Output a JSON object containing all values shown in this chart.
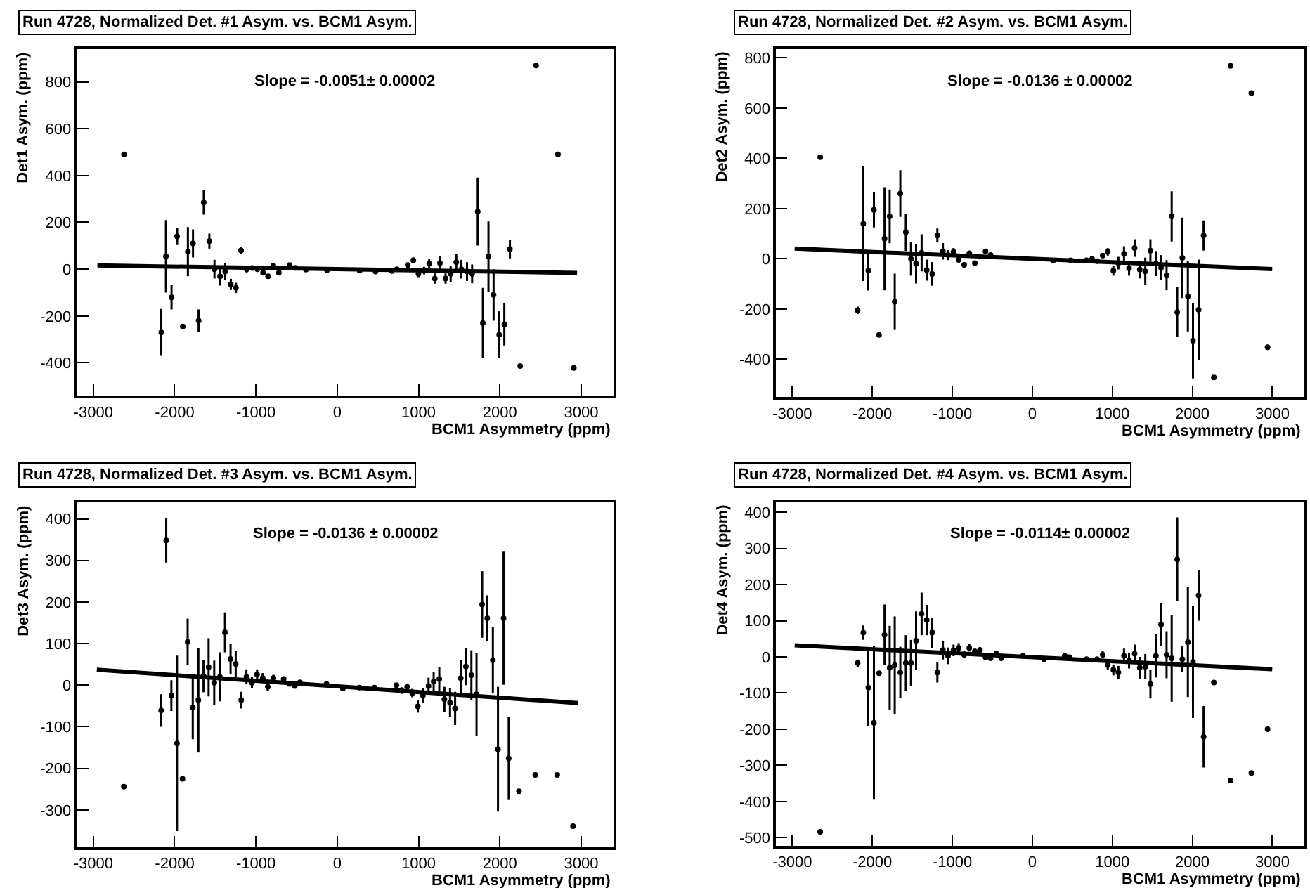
{
  "chart_data": [
    {
      "type": "scatter",
      "title": "Run 4728, Normalized Det. #1 Asym. vs. BCM1 Asym.",
      "xlabel": "BCM1 Asymmetry (ppm)",
      "ylabel": "Det1 Asym. (ppm)",
      "annotations": [
        "Slope = -0.0051± 0.00002"
      ],
      "xlim": [
        -3200,
        3400
      ],
      "ylim": [
        -540,
        940
      ],
      "xticks": [
        -3000,
        -2000,
        -1000,
        0,
        1000,
        2000,
        3000
      ],
      "yticks": [
        -400,
        -200,
        0,
        200,
        400,
        600,
        800
      ],
      "marker": "circle",
      "series": [
        {
          "type": "scatter",
          "color": "#000000",
          "x": [
            -2623,
            -2164,
            -2107,
            -2038,
            -1969,
            -1900,
            -1837,
            -1774,
            -1705,
            -1642,
            -1573,
            -1510,
            -1441,
            -1378,
            -1309,
            -1246,
            -1183,
            -1114,
            -1045,
            -982,
            -913,
            -850,
            -786,
            -718,
            -585,
            -517,
            -385,
            -126,
            276,
            471,
            672,
            735,
            867,
            936,
            999,
            1068,
            1131,
            1200,
            1263,
            1332,
            1395,
            1464,
            1527,
            1596,
            1659,
            1728,
            1791,
            1860,
            1923,
            1992,
            2055,
            2124,
            2250,
            2445,
            2715,
            2910
          ],
          "values": [
            490,
            -270,
            55,
            -120,
            140,
            -245,
            75,
            110,
            -220,
            285,
            120,
            0,
            -30,
            -10,
            -65,
            -80,
            80,
            0,
            5,
            0,
            -15,
            -30,
            15,
            -15,
            18,
            6,
            -2,
            -4,
            -6,
            -10,
            -8,
            0,
            18,
            38,
            -20,
            -6,
            24,
            -40,
            26,
            -40,
            -20,
            30,
            0,
            -10,
            -20,
            246,
            -230,
            54,
            -110,
            -280,
            -236,
            86,
            -414,
            870,
            490,
            -422
          ],
          "errors": [
            null,
            100,
            155,
            52,
            37,
            null,
            105,
            60,
            48,
            52,
            32,
            40,
            40,
            35,
            24,
            22,
            14,
            14,
            10,
            10,
            8,
            8,
            6,
            8,
            5,
            4,
            3,
            3,
            3,
            3,
            4,
            4,
            10,
            12,
            14,
            16,
            20,
            22,
            28,
            22,
            35,
            35,
            40,
            40,
            40,
            145,
            150,
            150,
            110,
            100,
            90,
            40,
            null,
            null,
            null,
            null
          ]
        },
        {
          "type": "line",
          "marker": "none",
          "color": "#000000",
          "x": [
            -2950,
            2950
          ],
          "values": [
            16,
            -16
          ]
        }
      ]
    },
    {
      "type": "scatter",
      "title": "Run 4728, Normalized Det. #2 Asym. vs. BCM1 Asym.",
      "xlabel": "BCM1 Asymmetry (ppm)",
      "ylabel": "Det2 Asym. (ppm)",
      "annotations": [
        "Slope = -0.0136 ± 0.00002"
      ],
      "xlim": [
        -3200,
        3400
      ],
      "ylim": [
        -550,
        835
      ],
      "xticks": [
        -3000,
        -2000,
        -1000,
        0,
        1000,
        2000,
        3000
      ],
      "yticks": [
        -400,
        -200,
        0,
        200,
        400,
        600,
        800
      ],
      "marker": "circle",
      "series": [
        {
          "type": "scatter",
          "color": "#000000",
          "x": [
            -2650,
            -2182,
            -2112,
            -2049,
            -1979,
            -1915,
            -1846,
            -1782,
            -1719,
            -1649,
            -1580,
            -1516,
            -1452,
            -1383,
            -1319,
            -1250,
            -1186,
            -1117,
            -1053,
            -984,
            -920,
            -851,
            -787,
            -718,
            -584,
            -521,
            260,
            480,
            677,
            747,
            810,
            880,
            943,
            1013,
            1076,
            1146,
            1209,
            1279,
            1343,
            1412,
            1476,
            1545,
            1609,
            1678,
            1742,
            1811,
            1875,
            1944,
            2008,
            2078,
            2141,
            2269,
            2477,
            2737,
            2940
          ],
          "values": [
            405,
            -205,
            140,
            -47,
            195,
            -303,
            80,
            169,
            -171,
            260,
            106,
            0,
            -19,
            24,
            -45,
            -60,
            93,
            30,
            15,
            28,
            -4,
            -24,
            22,
            -17,
            30,
            15,
            -7,
            -6,
            -6,
            0,
            -9,
            13,
            28,
            -47,
            -17,
            20,
            -37,
            43,
            -43,
            -50,
            33,
            -19,
            -35,
            -65,
            169,
            -212,
            4,
            -149,
            -326,
            -203,
            93,
            -472,
            768,
            660,
            -352
          ],
          "errors": [
            null,
            15,
            228,
            79,
            70,
            null,
            205,
            107,
            112,
            93,
            74,
            67,
            79,
            74,
            42,
            47,
            28,
            33,
            20,
            15,
            12,
            10,
            10,
            8,
            6,
            4,
            3,
            3,
            3,
            3,
            5,
            10,
            15,
            20,
            25,
            30,
            30,
            35,
            35,
            55,
            45,
            50,
            50,
            60,
            100,
            100,
            160,
            140,
            150,
            200,
            60,
            null,
            null,
            null,
            null
          ]
        },
        {
          "type": "line",
          "marker": "none",
          "color": "#000000",
          "x": [
            -2969,
            2998
          ],
          "values": [
            41,
            -41
          ]
        }
      ]
    },
    {
      "type": "scatter",
      "title": "Run 4728, Normalized Det. #3 Asym. vs. BCM1 Asym.",
      "xlabel": "BCM1 Asymmetry (ppm)",
      "ylabel": "Det3 Asym. (ppm)",
      "annotations": [
        "Slope = -0.0136 ± 0.00002"
      ],
      "xlim": [
        -3200,
        3400
      ],
      "ylim": [
        -390,
        440
      ],
      "xticks": [
        -3000,
        -2000,
        -1000,
        0,
        1000,
        2000,
        3000
      ],
      "yticks": [
        -300,
        -200,
        -100,
        0,
        100,
        200,
        300,
        400
      ],
      "marker": "circle",
      "series": [
        {
          "type": "scatter",
          "color": "#000000",
          "x": [
            -2625,
            -2166,
            -2103,
            -2040,
            -1971,
            -1903,
            -1840,
            -1777,
            -1708,
            -1645,
            -1582,
            -1513,
            -1444,
            -1381,
            -1312,
            -1249,
            -1181,
            -1117,
            -1049,
            -986,
            -917,
            -854,
            -785,
            -659,
            -590,
            -521,
            -458,
            -132,
            69,
            269,
            458,
            728,
            791,
            860,
            923,
            991,
            1054,
            1123,
            1186,
            1255,
            1318,
            1387,
            1450,
            1519,
            1582,
            1650,
            1713,
            1782,
            1845,
            1914,
            1977,
            2046,
            2109,
            2235,
            2436,
            2705,
            2900
          ],
          "values": [
            -244,
            -61,
            348,
            -25,
            -140,
            -225,
            104,
            -54,
            -36,
            22,
            43,
            6,
            20,
            127,
            63,
            51,
            -36,
            20,
            6,
            26,
            17,
            -4,
            17,
            15,
            3,
            -2,
            7,
            3,
            -8,
            -6,
            -6,
            0,
            -13,
            -4,
            -19,
            -51,
            -25,
            -2,
            9,
            15,
            -34,
            -42,
            -56,
            17,
            45,
            24,
            -22,
            194,
            161,
            60,
            -154,
            161,
            -176,
            -255,
            -216,
            -216,
            -339
          ],
          "errors": [
            null,
            39,
            53,
            37,
            211,
            null,
            56,
            76,
            126,
            39,
            70,
            53,
            59,
            48,
            37,
            31,
            20,
            18,
            13,
            12,
            12,
            10,
            8,
            6,
            5,
            5,
            4,
            3,
            3,
            3,
            3,
            5,
            8,
            8,
            10,
            15,
            18,
            20,
            22,
            28,
            30,
            35,
            40,
            43,
            45,
            60,
            100,
            80,
            55,
            80,
            150,
            160,
            100,
            null,
            null,
            null,
            null
          ]
        },
        {
          "type": "line",
          "marker": "none",
          "color": "#000000",
          "x": [
            -2957,
            2963
          ],
          "values": [
            37,
            -43
          ]
        }
      ]
    },
    {
      "type": "scatter",
      "title": "Run 4728, Normalized Det. #4 Asym. vs. BCM1 Asym.",
      "xlabel": "BCM1 Asymmetry (ppm)",
      "ylabel": "Det4 Asym. (ppm)",
      "annotations": [
        "Slope = -0.0114± 0.00002"
      ],
      "xlim": [
        -3200,
        3400
      ],
      "ylim": [
        -523,
        428
      ],
      "xticks": [
        -3000,
        -2000,
        -1000,
        0,
        1000,
        2000,
        3000
      ],
      "yticks": [
        -500,
        -400,
        -300,
        -200,
        -100,
        0,
        100,
        200,
        300,
        400
      ],
      "marker": "circle",
      "series": [
        {
          "type": "scatter",
          "color": "#000000",
          "x": [
            -2650,
            -2182,
            -2112,
            -2049,
            -1979,
            -1915,
            -1846,
            -1782,
            -1719,
            -1649,
            -1580,
            -1516,
            -1452,
            -1383,
            -1319,
            -1250,
            -1186,
            -1117,
            -1053,
            -984,
            -920,
            -851,
            -787,
            -718,
            -654,
            -584,
            -521,
            -451,
            -388,
            -116,
            145,
            405,
            463,
            677,
            810,
            880,
            943,
            1013,
            1076,
            1146,
            1209,
            1279,
            1343,
            1412,
            1476,
            1545,
            1609,
            1678,
            1742,
            1811,
            1875,
            1944,
            2008,
            2078,
            2141,
            2269,
            2477,
            2737,
            2940
          ],
          "values": [
            -484,
            -17,
            67,
            -85,
            -182,
            -45,
            61,
            -30,
            -23,
            -43,
            -17,
            -17,
            45,
            119,
            102,
            67,
            -43,
            19,
            3,
            18,
            25,
            6,
            25,
            15,
            19,
            -1,
            -4,
            9,
            -4,
            3,
            -6,
            3,
            -1,
            -6,
            -6,
            6,
            -23,
            -36,
            -43,
            3,
            -10,
            9,
            -30,
            -27,
            -75,
            3,
            90,
            6,
            -4,
            270,
            -6,
            41,
            -14,
            170,
            -221,
            -71,
            -342,
            -321,
            -200
          ],
          "errors": [
            null,
            10,
            20,
            106,
            213,
            null,
            84,
            116,
            135,
            71,
            77,
            64,
            81,
            59,
            42,
            42,
            28,
            26,
            23,
            16,
            13,
            10,
            10,
            8,
            8,
            6,
            5,
            4,
            4,
            3,
            3,
            3,
            3,
            3,
            3,
            10,
            12,
            15,
            18,
            20,
            22,
            25,
            30,
            35,
            40,
            60,
            60,
            65,
            120,
            116,
            35,
            152,
            155,
            70,
            85,
            null,
            null,
            null,
            null
          ]
        },
        {
          "type": "line",
          "marker": "none",
          "color": "#000000",
          "x": [
            -2969,
            2998
          ],
          "values": [
            32,
            -34
          ]
        }
      ]
    }
  ]
}
